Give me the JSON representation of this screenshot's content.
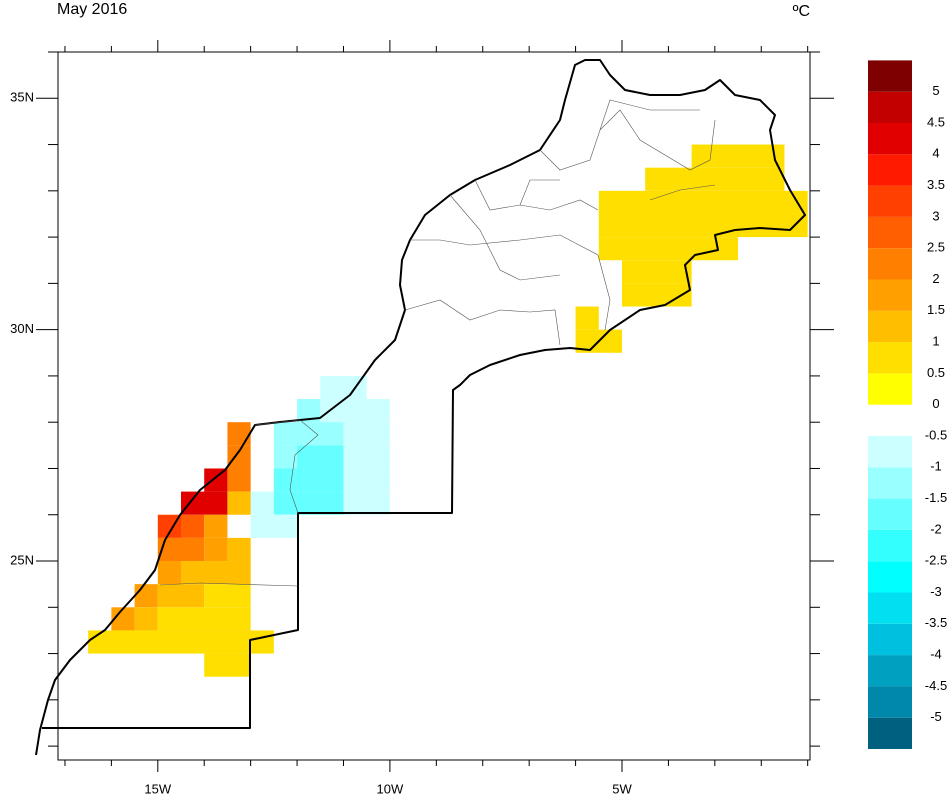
{
  "chart_data": {
    "type": "grid-map",
    "title": "May 2016",
    "unit": "ºC",
    "xlim": [
      -17.15,
      -0.95
    ],
    "ylim": [
      20.7,
      36.0
    ],
    "xticks": [
      {
        "value": -15,
        "label": "15W"
      },
      {
        "value": -10,
        "label": "10W"
      },
      {
        "value": -5,
        "label": "5W"
      }
    ],
    "yticks": [
      {
        "value": 25,
        "label": "25N"
      },
      {
        "value": 30,
        "label": "30N"
      },
      {
        "value": 35,
        "label": "35N"
      }
    ],
    "xminorticks": [
      -17,
      -16,
      -14,
      -13,
      -12,
      -11,
      -9,
      -8,
      -7,
      -6,
      -4,
      -3,
      -2,
      -1
    ],
    "yminorticks": [
      21,
      22,
      23,
      24,
      26,
      27,
      28,
      29,
      31,
      32,
      33,
      34,
      36
    ],
    "levels": [
      -5,
      -4.5,
      -4,
      -3.5,
      -3,
      -2.5,
      -2,
      -1.5,
      -1,
      -0.5,
      0,
      0.5,
      1,
      1.5,
      2,
      2.5,
      3,
      3.5,
      4,
      4.5,
      5
    ],
    "colors": [
      "#006080",
      "#0088aa",
      "#00a0c0",
      "#00c0e0",
      "#00e0f0",
      "#00ffff",
      "#33ffff",
      "#66ffff",
      "#99ffff",
      "#ccffff",
      "#ffffff",
      "#ffff00",
      "#ffdf00",
      "#ffbf00",
      "#ff9f00",
      "#ff7f00",
      "#ff5f00",
      "#ff4000",
      "#ff1a00",
      "#e00000",
      "#c30000",
      "#7f0000"
    ],
    "cells": [
      {
        "lon": [
          -3.5,
          -1.5
        ],
        "lat": 33.5,
        "value": 0.75
      },
      {
        "lon": [
          -4.5,
          -1.5
        ],
        "lat": 33,
        "value": 0.75
      },
      {
        "lon": [
          -5.5,
          -1
        ],
        "lat": 32.5,
        "value": 0.75
      },
      {
        "lon": [
          -5.5,
          -1
        ],
        "lat": 32,
        "value": 0.75
      },
      {
        "lon": [
          -5.5,
          -2.5
        ],
        "lat": 31.5,
        "value": 0.75
      },
      {
        "lon": [
          -5,
          -3.5
        ],
        "lat": 31,
        "value": 0.75
      },
      {
        "lon": [
          -5,
          -3.5
        ],
        "lat": 30.5,
        "value": 0.75
      },
      {
        "lon": [
          -6,
          -5.5
        ],
        "lat": 30,
        "value": 0.75
      },
      {
        "lon": [
          -6,
          -5
        ],
        "lat": 29.5,
        "value": 0.75
      },
      {
        "lon": [
          -11.5,
          -10.5
        ],
        "lat": 28.5,
        "value": -0.75
      },
      {
        "lon": [
          -12,
          -11.5
        ],
        "lat": 28,
        "value": -1.25
      },
      {
        "lon": [
          -11.5,
          -10
        ],
        "lat": 28,
        "value": -0.75
      },
      {
        "lon": [
          -12.5,
          -11
        ],
        "lat": 27.5,
        "value": -1.25
      },
      {
        "lon": [
          -11,
          -10
        ],
        "lat": 27.5,
        "value": -0.75
      },
      {
        "lon": [
          -12.5,
          -12
        ],
        "lat": 27,
        "value": -1.25
      },
      {
        "lon": [
          -12,
          -11
        ],
        "lat": 27,
        "value": -1.75
      },
      {
        "lon": [
          -11,
          -10
        ],
        "lat": 27,
        "value": -0.75
      },
      {
        "lon": [
          -12.5,
          -11
        ],
        "lat": 26.5,
        "value": -1.75
      },
      {
        "lon": [
          -11,
          -10
        ],
        "lat": 26.5,
        "value": -0.75
      },
      {
        "lon": [
          -13,
          -12.5
        ],
        "lat": 26,
        "value": -0.75
      },
      {
        "lon": [
          -12.5,
          -11
        ],
        "lat": 26,
        "value": -1.75
      },
      {
        "lon": [
          -11,
          -10
        ],
        "lat": 26,
        "value": -0.75
      },
      {
        "lon": [
          -13,
          -12
        ],
        "lat": 25.5,
        "value": -0.75
      },
      {
        "lon": [
          -13.5,
          -13
        ],
        "lat": 27.5,
        "value": 2.25
      },
      {
        "lon": [
          -13.5,
          -13
        ],
        "lat": 27,
        "value": 2.25
      },
      {
        "lon": [
          -14,
          -13.5
        ],
        "lat": 26.5,
        "value": 4.25
      },
      {
        "lon": [
          -13.5,
          -13
        ],
        "lat": 26.5,
        "value": 2.25
      },
      {
        "lon": [
          -14.5,
          -13.5
        ],
        "lat": 26,
        "value": 4.25
      },
      {
        "lon": [
          -13.5,
          -13
        ],
        "lat": 26,
        "value": 1.25
      },
      {
        "lon": [
          -15,
          -14.5
        ],
        "lat": 25.5,
        "value": 3.25
      },
      {
        "lon": [
          -14.5,
          -14
        ],
        "lat": 25.5,
        "value": 2.75
      },
      {
        "lon": [
          -14,
          -13.5
        ],
        "lat": 25.5,
        "value": 1.75
      },
      {
        "lon": [
          -15,
          -14
        ],
        "lat": 25,
        "value": 2.25
      },
      {
        "lon": [
          -14,
          -13.5
        ],
        "lat": 25,
        "value": 1.75
      },
      {
        "lon": [
          -13.5,
          -13
        ],
        "lat": 25,
        "value": 1.25
      },
      {
        "lon": [
          -15,
          -14.5
        ],
        "lat": 24.5,
        "value": 1.75
      },
      {
        "lon": [
          -14.5,
          -13
        ],
        "lat": 24.5,
        "value": 1.25
      },
      {
        "lon": [
          -15.5,
          -15
        ],
        "lat": 24,
        "value": 1.75
      },
      {
        "lon": [
          -15,
          -14
        ],
        "lat": 24,
        "value": 1.25
      },
      {
        "lon": [
          -14,
          -13
        ],
        "lat": 24,
        "value": 0.75
      },
      {
        "lon": [
          -16,
          -15.5
        ],
        "lat": 23.5,
        "value": 1.75
      },
      {
        "lon": [
          -15.5,
          -15
        ],
        "lat": 23.5,
        "value": 1.25
      },
      {
        "lon": [
          -15,
          -13
        ],
        "lat": 23.5,
        "value": 0.75
      },
      {
        "lon": [
          -16.5,
          -12.5
        ],
        "lat": 23,
        "value": 0.75
      },
      {
        "lon": [
          -14,
          -13
        ],
        "lat": 22.5,
        "value": 0.75
      }
    ]
  }
}
